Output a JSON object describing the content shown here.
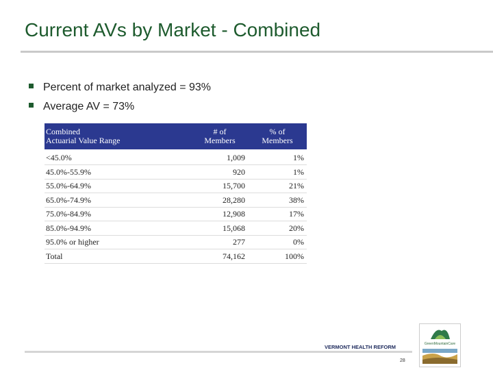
{
  "title": "Current AVs by Market - Combined",
  "bullets": [
    "Percent of market analyzed = 93%",
    "Average AV = 73%"
  ],
  "table": {
    "header": [
      [
        "Combined",
        "Actuarial Value Range"
      ],
      [
        "# of",
        "Members"
      ],
      [
        "% of",
        "Members"
      ]
    ],
    "rows": [
      [
        "<45.0%",
        "1,009",
        "1%"
      ],
      [
        "45.0%-55.9%",
        "920",
        "1%"
      ],
      [
        "55.0%-64.9%",
        "15,700",
        "21%"
      ],
      [
        "65.0%-74.9%",
        "28,280",
        "38%"
      ],
      [
        "75.0%-84.9%",
        "12,908",
        "17%"
      ],
      [
        "85.0%-94.9%",
        "15,068",
        "20%"
      ],
      [
        "95.0% or higher",
        "277",
        "0%"
      ],
      [
        "Total",
        "74,162",
        "100%"
      ]
    ]
  },
  "footer": {
    "org": "VERMONT HEALTH REFORM",
    "page": "28"
  },
  "logo": {
    "name": "GreenMountainCare"
  }
}
